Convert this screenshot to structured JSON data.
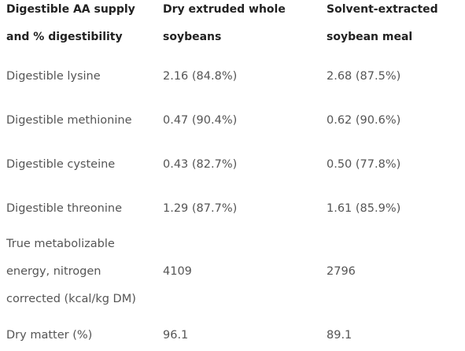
{
  "table": {
    "header": [
      "Digestible AA supply and % digestibility",
      "Dry extruded whole soybeans",
      "Solvent-extracted soybean meal"
    ],
    "rows": [
      [
        "Digestible lysine",
        "2.16 (84.8%)",
        "2.68 (87.5%)"
      ],
      [
        "Digestible methionine",
        "0.47 (90.4%)",
        "0.62 (90.6%)"
      ],
      [
        "Digestible cysteine",
        "0.43 (82.7%)",
        "0.50 (77.8%)"
      ],
      [
        "Digestible threonine",
        "1.29 (87.7%)",
        "1.61 (85.9%)"
      ],
      [
        "True metabolizable energy, nitrogen corrected (kcal/kg DM)",
        "4109",
        "2796"
      ],
      [
        "Dry matter (%)",
        "96.1",
        "89.1"
      ]
    ]
  }
}
